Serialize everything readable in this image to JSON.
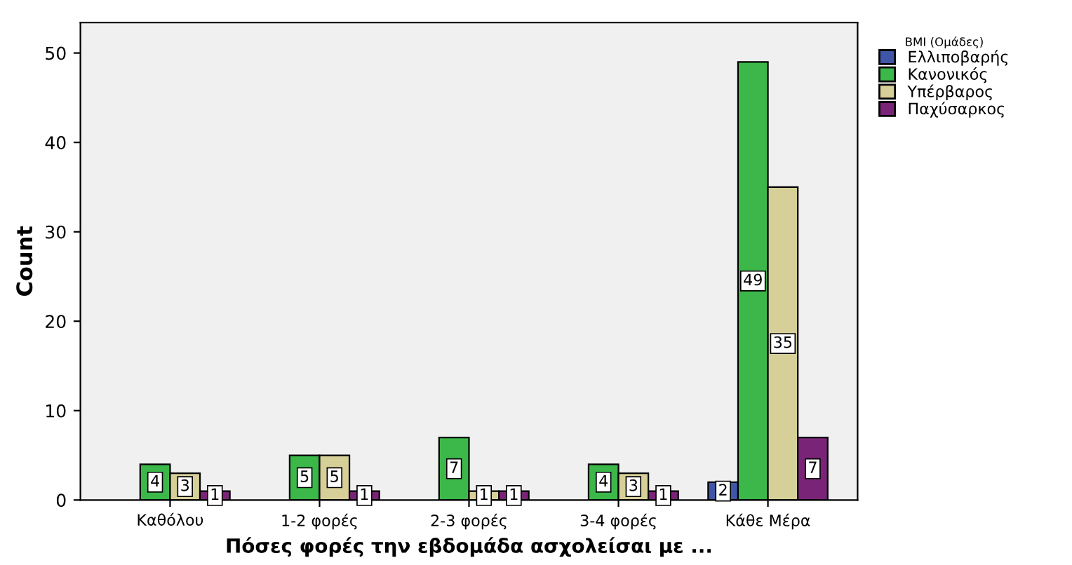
{
  "chart_data": {
    "type": "bar",
    "xlabel": "Πόσες φορές την εβδομάδα ασχολείσαι με ...",
    "ylabel": "Count",
    "legend_title": "BMI (Ομάδες)",
    "categories": [
      "Καθόλου",
      "1-2 φορές",
      "2-3 φορές",
      "3-4 φορές",
      "Κάθε Μέρα"
    ],
    "series": [
      {
        "name": "Ελλιποβαρής",
        "color": "#3f56a8",
        "values": [
          null,
          null,
          null,
          null,
          2
        ]
      },
      {
        "name": "Κανονικός",
        "color": "#3cb84a",
        "values": [
          4,
          5,
          7,
          4,
          49
        ]
      },
      {
        "name": "Υπέρβαρος",
        "color": "#d6cf98",
        "values": [
          3,
          5,
          1,
          3,
          35
        ]
      },
      {
        "name": "Παχύσαρκος",
        "color": "#7a2478",
        "values": [
          1,
          1,
          1,
          1,
          7
        ]
      }
    ],
    "ylim": [
      0,
      53.4
    ],
    "yticks": [
      0,
      10,
      20,
      30,
      40,
      50
    ],
    "data_labels": true,
    "grid": false,
    "legend": "top right"
  }
}
